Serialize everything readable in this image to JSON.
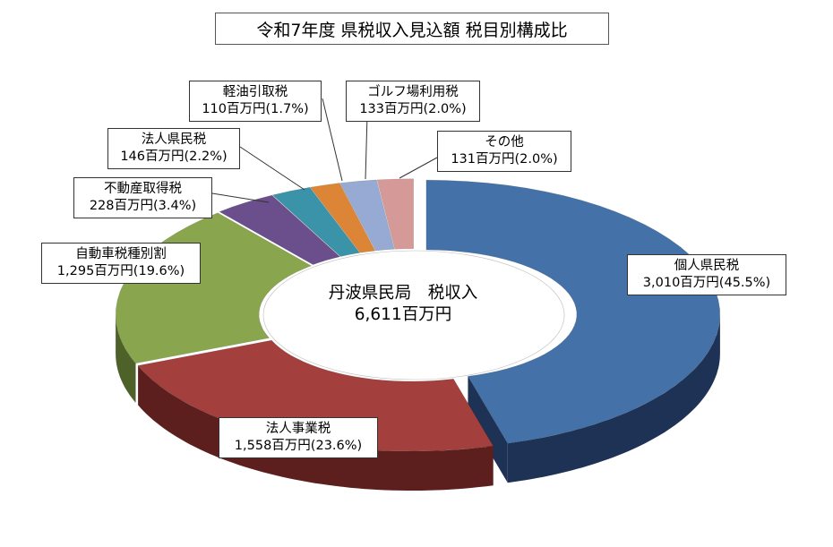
{
  "chart_data": {
    "type": "pie",
    "title": "令和7年度 県税収入見込額 税目別構成比",
    "center_label": "丹波県民局　税収入",
    "center_total": "6,611百万円",
    "slices": [
      {
        "name": "個人県民税",
        "value": 3010,
        "label": "3,010百万円(45.5%)",
        "color": "#4472a8",
        "side": "#1d3254",
        "explode": true
      },
      {
        "name": "法人事業税",
        "value": 1558,
        "label": "1,558百万円(23.6%)",
        "color": "#a33f3d",
        "side": "#5c1f1e"
      },
      {
        "name": "自動車税種別割",
        "value": 1295,
        "label": "1,295百万円(19.6%)",
        "color": "#89a64e",
        "side": "#4e6129"
      },
      {
        "name": "不動産取得税",
        "value": 228,
        "label": "228百万円(3.4%)",
        "color": "#6b4e8c",
        "side": "#3a2a4e"
      },
      {
        "name": "法人県民税",
        "value": 146,
        "label": "146百万円(2.2%)",
        "color": "#3a93a8",
        "side": "#1d5260"
      },
      {
        "name": "軽油引取税",
        "value": 110,
        "label": "110百万円(1.7%)",
        "color": "#dc8537",
        "side": "#7e4a1d"
      },
      {
        "name": "ゴルフ場利用税",
        "value": 133,
        "label": "133百万円(2.0%)",
        "color": "#97aad3",
        "side": "#56627d"
      },
      {
        "name": "その他",
        "value": 131,
        "label": "131百万円(2.0%)",
        "color": "#d59a98",
        "side": "#7d5756"
      }
    ]
  }
}
